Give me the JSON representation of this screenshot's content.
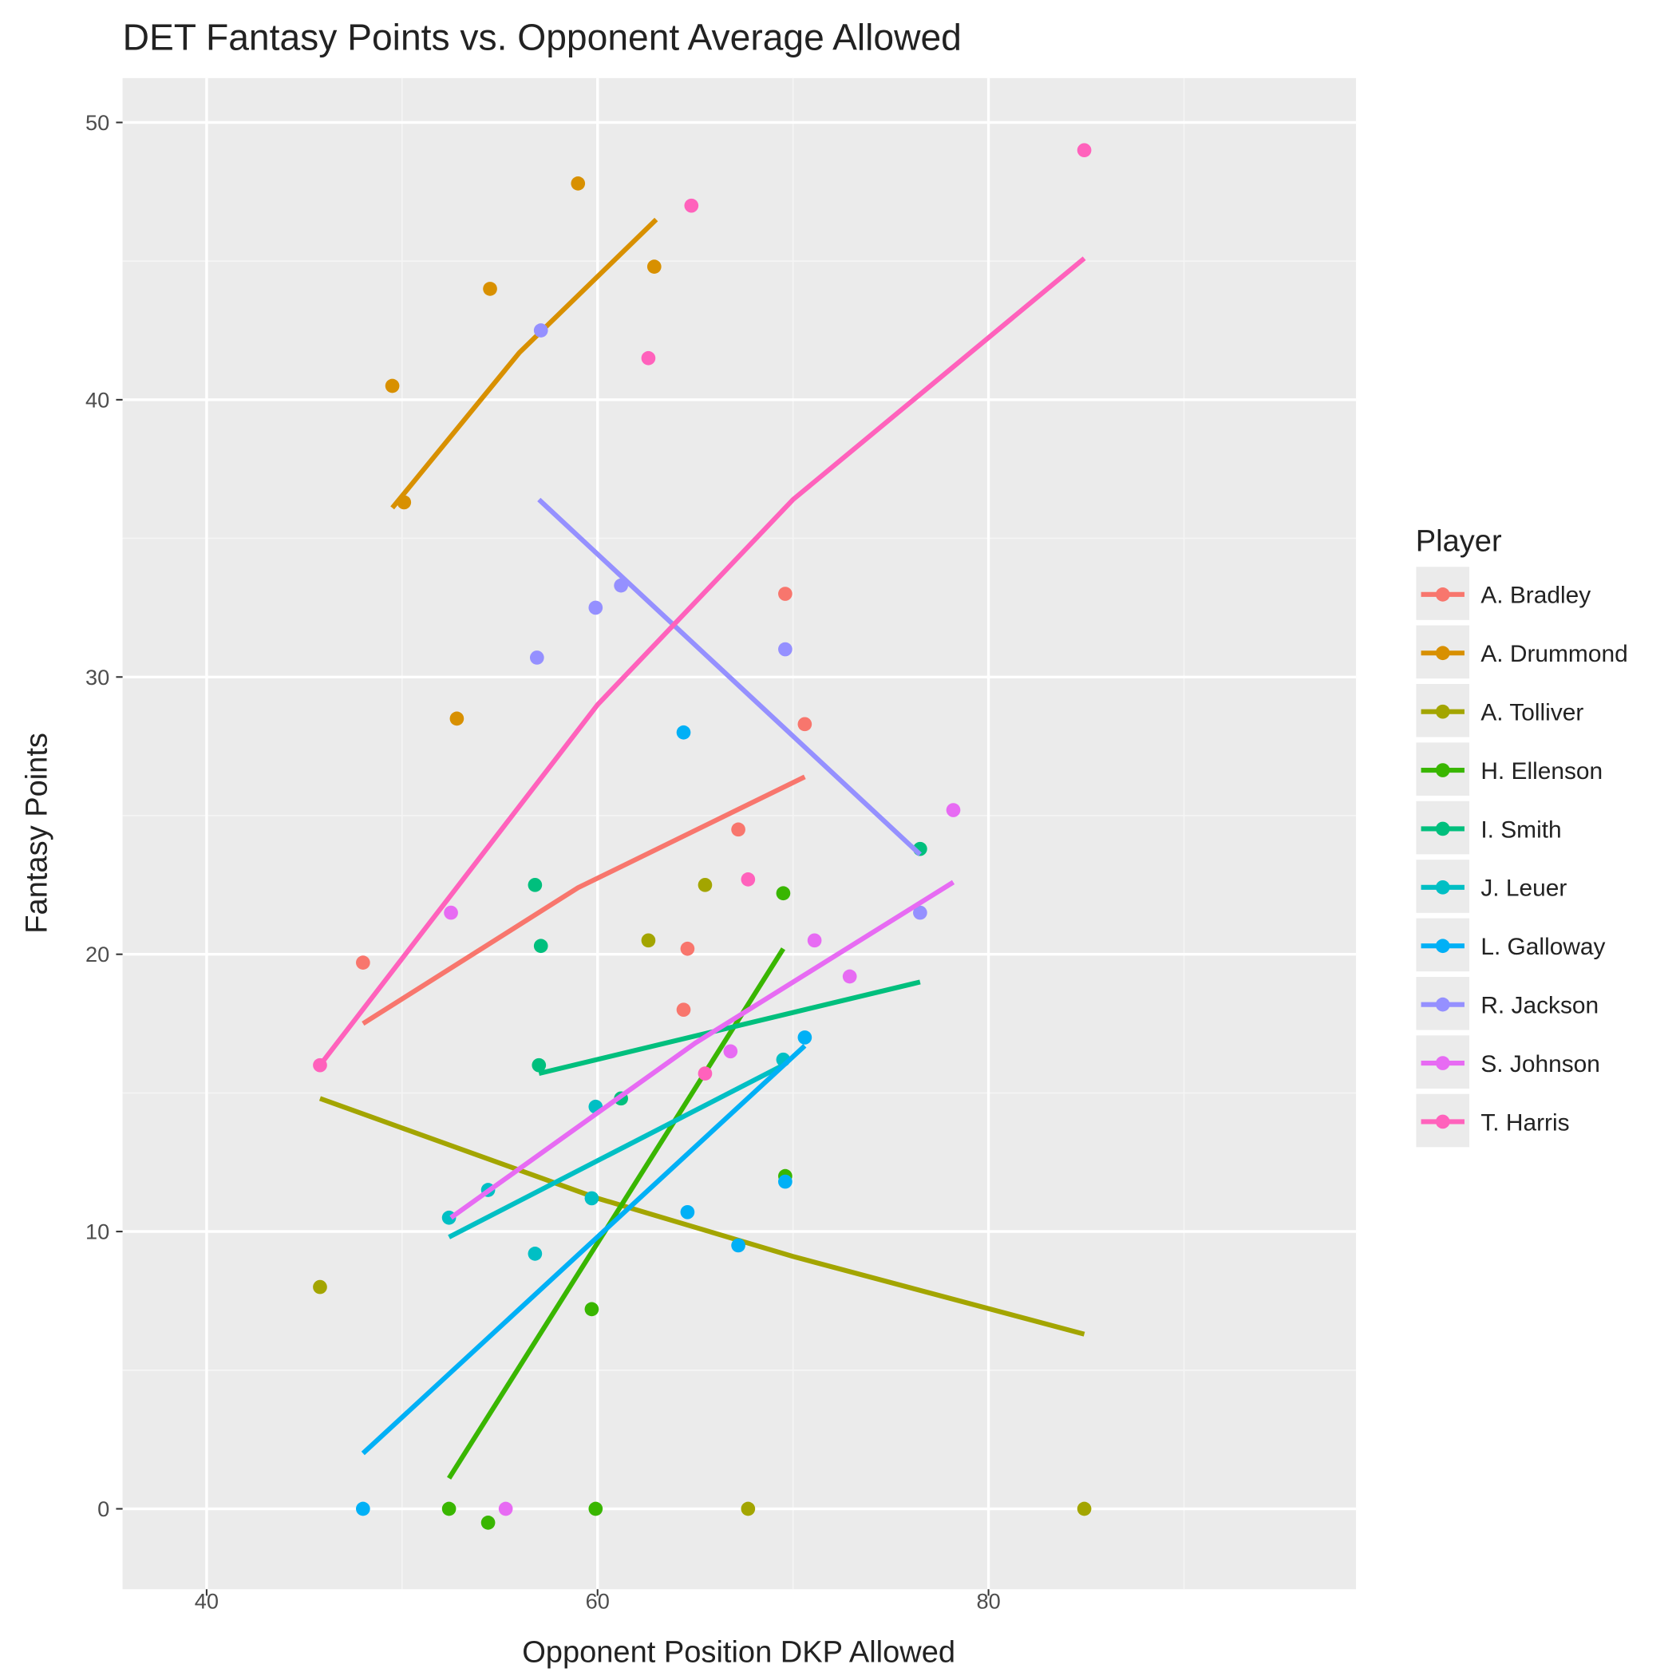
{
  "chart_data": {
    "type": "scatter",
    "title": "DET Fantasy Points vs. Opponent Average Allowed",
    "x_label": "Opponent Position DKP Allowed",
    "y_label": "Fantasy Points",
    "legend_title": "Player",
    "legend": "right",
    "grid": true,
    "xlim": [
      35.7,
      98.8
    ],
    "ylim": [
      -2.9,
      51.6
    ],
    "xticks": [
      40,
      60,
      80
    ],
    "yticks": [
      0,
      10,
      20,
      30,
      40,
      50
    ],
    "xminor": [
      50,
      70,
      90
    ],
    "yminor": [
      5,
      15,
      25,
      35,
      45
    ],
    "series": [
      {
        "name": "A. Bradley",
        "color": "#F8766D",
        "x": [
          48.0,
          69.6,
          70.6,
          67.2,
          64.6,
          64.4
        ],
        "y": [
          19.7,
          33.0,
          28.3,
          24.5,
          20.2,
          18.0
        ],
        "fit_x": [
          48.0,
          59.0,
          70.6
        ],
        "fit_y": [
          17.5,
          22.4,
          26.4
        ]
      },
      {
        "name": "A. Drummond",
        "color": "#D89000",
        "x": [
          49.5,
          50.1,
          54.5,
          59.0,
          62.9,
          52.8
        ],
        "y": [
          40.5,
          36.3,
          44.0,
          47.8,
          44.8,
          28.5
        ],
        "fit_x": [
          49.5,
          56.0,
          63.0
        ],
        "fit_y": [
          36.1,
          41.7,
          46.5
        ]
      },
      {
        "name": "A. Tolliver",
        "color": "#A3A500",
        "x": [
          45.8,
          62.6,
          65.5,
          67.7,
          84.9
        ],
        "y": [
          8.0,
          20.5,
          22.5,
          0,
          0
        ],
        "fit_x": [
          45.8,
          60.0,
          70.0,
          84.9
        ],
        "fit_y": [
          14.8,
          11.2,
          9.1,
          6.3
        ]
      },
      {
        "name": "H. Ellenson",
        "color": "#39B600",
        "x": [
          52.4,
          54.4,
          59.7,
          59.9,
          69.5,
          69.6
        ],
        "y": [
          0,
          -0.5,
          7.2,
          0,
          22.2,
          12.0
        ],
        "fit_x": [
          52.4,
          69.5
        ],
        "fit_y": [
          1.1,
          20.2
        ]
      },
      {
        "name": "I. Smith",
        "color": "#00BF7D",
        "x": [
          56.8,
          57.1,
          57.0,
          61.2,
          76.5
        ],
        "y": [
          22.5,
          20.3,
          16.0,
          14.8,
          23.8
        ],
        "fit_x": [
          57.0,
          76.5
        ],
        "fit_y": [
          15.7,
          19.0
        ]
      },
      {
        "name": "J. Leuer",
        "color": "#00BFC4",
        "x": [
          52.4,
          54.4,
          56.8,
          59.7,
          59.9,
          69.5
        ],
        "y": [
          10.5,
          11.5,
          9.2,
          11.2,
          14.5,
          16.2
        ],
        "fit_x": [
          52.4,
          69.5
        ],
        "fit_y": [
          9.8,
          16.0
        ]
      },
      {
        "name": "L. Galloway",
        "color": "#00B0F6",
        "x": [
          48.0,
          64.4,
          64.6,
          67.2,
          69.6,
          70.6
        ],
        "y": [
          0,
          28.0,
          10.7,
          9.5,
          11.8,
          17.0
        ],
        "fit_x": [
          48.0,
          70.6
        ],
        "fit_y": [
          2.0,
          16.7
        ]
      },
      {
        "name": "R. Jackson",
        "color": "#9590FF",
        "x": [
          57.1,
          56.9,
          59.9,
          61.2,
          69.6,
          76.5
        ],
        "y": [
          42.5,
          30.7,
          32.5,
          33.3,
          31.0,
          21.5
        ],
        "fit_x": [
          57.0,
          76.5
        ],
        "fit_y": [
          36.4,
          23.6
        ]
      },
      {
        "name": "S. Johnson",
        "color": "#E76BF3",
        "x": [
          52.5,
          55.3,
          66.8,
          71.1,
          72.9,
          78.2
        ],
        "y": [
          21.5,
          0,
          16.5,
          20.5,
          19.2,
          25.2
        ],
        "fit_x": [
          52.5,
          65.0,
          78.2
        ],
        "fit_y": [
          10.5,
          16.8,
          22.6
        ]
      },
      {
        "name": "T. Harris",
        "color": "#FF62BC",
        "x": [
          45.8,
          62.6,
          64.8,
          67.7,
          65.5,
          84.9
        ],
        "y": [
          16.0,
          41.5,
          47.0,
          22.7,
          15.7,
          49.0
        ],
        "fit_x": [
          45.8,
          60.0,
          70.0,
          84.9
        ],
        "fit_y": [
          16.0,
          29.0,
          36.4,
          45.1
        ]
      }
    ]
  }
}
